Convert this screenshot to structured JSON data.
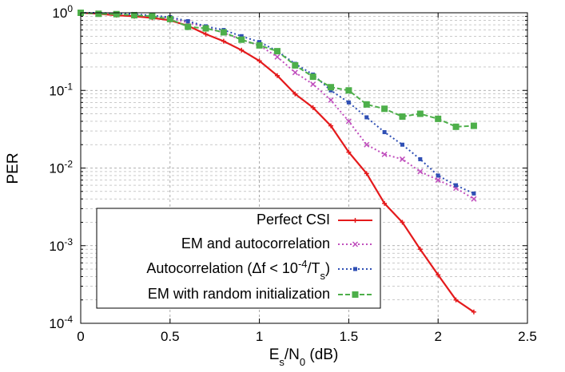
{
  "chart_data": {
    "type": "line",
    "xlabel": "E_s/N_0 (dB)",
    "xlabel_main": "E",
    "xlabel_sub1": "s",
    "xlabel_mid": "/N",
    "xlabel_sub2": "0",
    "xlabel_tail": " (dB)",
    "ylabel": "PER",
    "xlim": [
      0,
      2.5
    ],
    "ylim": [
      0.0001,
      1
    ],
    "yscale": "log",
    "grid": true,
    "legend_position": "bottom-left",
    "x_ticks": [
      "0",
      "0.5",
      "1",
      "1.5",
      "2",
      "2.5"
    ],
    "y_ticks": [
      {
        "base": "10",
        "exp": "0"
      },
      {
        "base": "10",
        "exp": "-1"
      },
      {
        "base": "10",
        "exp": "-2"
      },
      {
        "base": "10",
        "exp": "-3"
      },
      {
        "base": "10",
        "exp": "-4"
      }
    ],
    "series": [
      {
        "name": "Perfect CSI",
        "color": "#e41a1c",
        "marker": "plus",
        "dash": "solid",
        "x": [
          0,
          0.1,
          0.2,
          0.3,
          0.4,
          0.5,
          0.6,
          0.7,
          0.8,
          0.9,
          1.0,
          1.1,
          1.2,
          1.3,
          1.4,
          1.5,
          1.6,
          1.7,
          1.8,
          1.9,
          2.0,
          2.1,
          2.2
        ],
        "y": [
          1.0,
          0.97,
          0.93,
          0.9,
          0.86,
          0.8,
          0.68,
          0.53,
          0.43,
          0.33,
          0.24,
          0.155,
          0.09,
          0.06,
          0.035,
          0.016,
          0.0085,
          0.0035,
          0.002,
          0.0009,
          0.00042,
          0.0002,
          0.00014
        ]
      },
      {
        "name": "EM and autocorrelation",
        "color": "#c04fbd",
        "marker": "x",
        "dash": "dotted",
        "x": [
          0,
          0.1,
          0.2,
          0.3,
          0.4,
          0.5,
          0.6,
          0.7,
          0.8,
          0.9,
          1.0,
          1.1,
          1.2,
          1.3,
          1.4,
          1.5,
          1.6,
          1.7,
          1.8,
          1.9,
          2.0,
          2.1,
          2.2
        ],
        "y": [
          1.0,
          0.99,
          0.97,
          0.95,
          0.92,
          0.85,
          0.75,
          0.65,
          0.55,
          0.45,
          0.38,
          0.27,
          0.17,
          0.12,
          0.075,
          0.04,
          0.02,
          0.015,
          0.013,
          0.009,
          0.007,
          0.0055,
          0.004
        ]
      },
      {
        "name": "Autocorrelation (Δf < 10^-4/T_s)",
        "name_pre": "Autocorrelation (Δf < 10",
        "name_sup": "-4",
        "name_mid": "/T",
        "name_sub": "s",
        "name_post": ")",
        "color": "#2f4fb4",
        "marker": "square-small",
        "dash": "dotted",
        "x": [
          0,
          0.1,
          0.2,
          0.3,
          0.4,
          0.5,
          0.6,
          0.7,
          0.8,
          0.9,
          1.0,
          1.1,
          1.2,
          1.3,
          1.4,
          1.5,
          1.6,
          1.7,
          1.8,
          1.9,
          2.0,
          2.1,
          2.2
        ],
        "y": [
          1.0,
          1.0,
          0.98,
          0.96,
          0.92,
          0.88,
          0.78,
          0.67,
          0.6,
          0.5,
          0.42,
          0.32,
          0.22,
          0.16,
          0.1,
          0.07,
          0.045,
          0.029,
          0.02,
          0.013,
          0.008,
          0.006,
          0.0047
        ]
      },
      {
        "name": "EM with random initialization",
        "color": "#4daf4a",
        "marker": "square",
        "dash": "dashed",
        "x": [
          0,
          0.1,
          0.2,
          0.3,
          0.4,
          0.5,
          0.6,
          0.7,
          0.8,
          0.9,
          1.0,
          1.1,
          1.2,
          1.3,
          1.4,
          1.5,
          1.6,
          1.7,
          1.8,
          1.9,
          2.0,
          2.1,
          2.2
        ],
        "y": [
          1.0,
          0.97,
          0.96,
          0.93,
          0.9,
          0.83,
          0.66,
          0.63,
          0.56,
          0.45,
          0.38,
          0.32,
          0.21,
          0.15,
          0.11,
          0.1,
          0.066,
          0.058,
          0.046,
          0.05,
          0.043,
          0.034,
          0.035
        ]
      }
    ]
  }
}
